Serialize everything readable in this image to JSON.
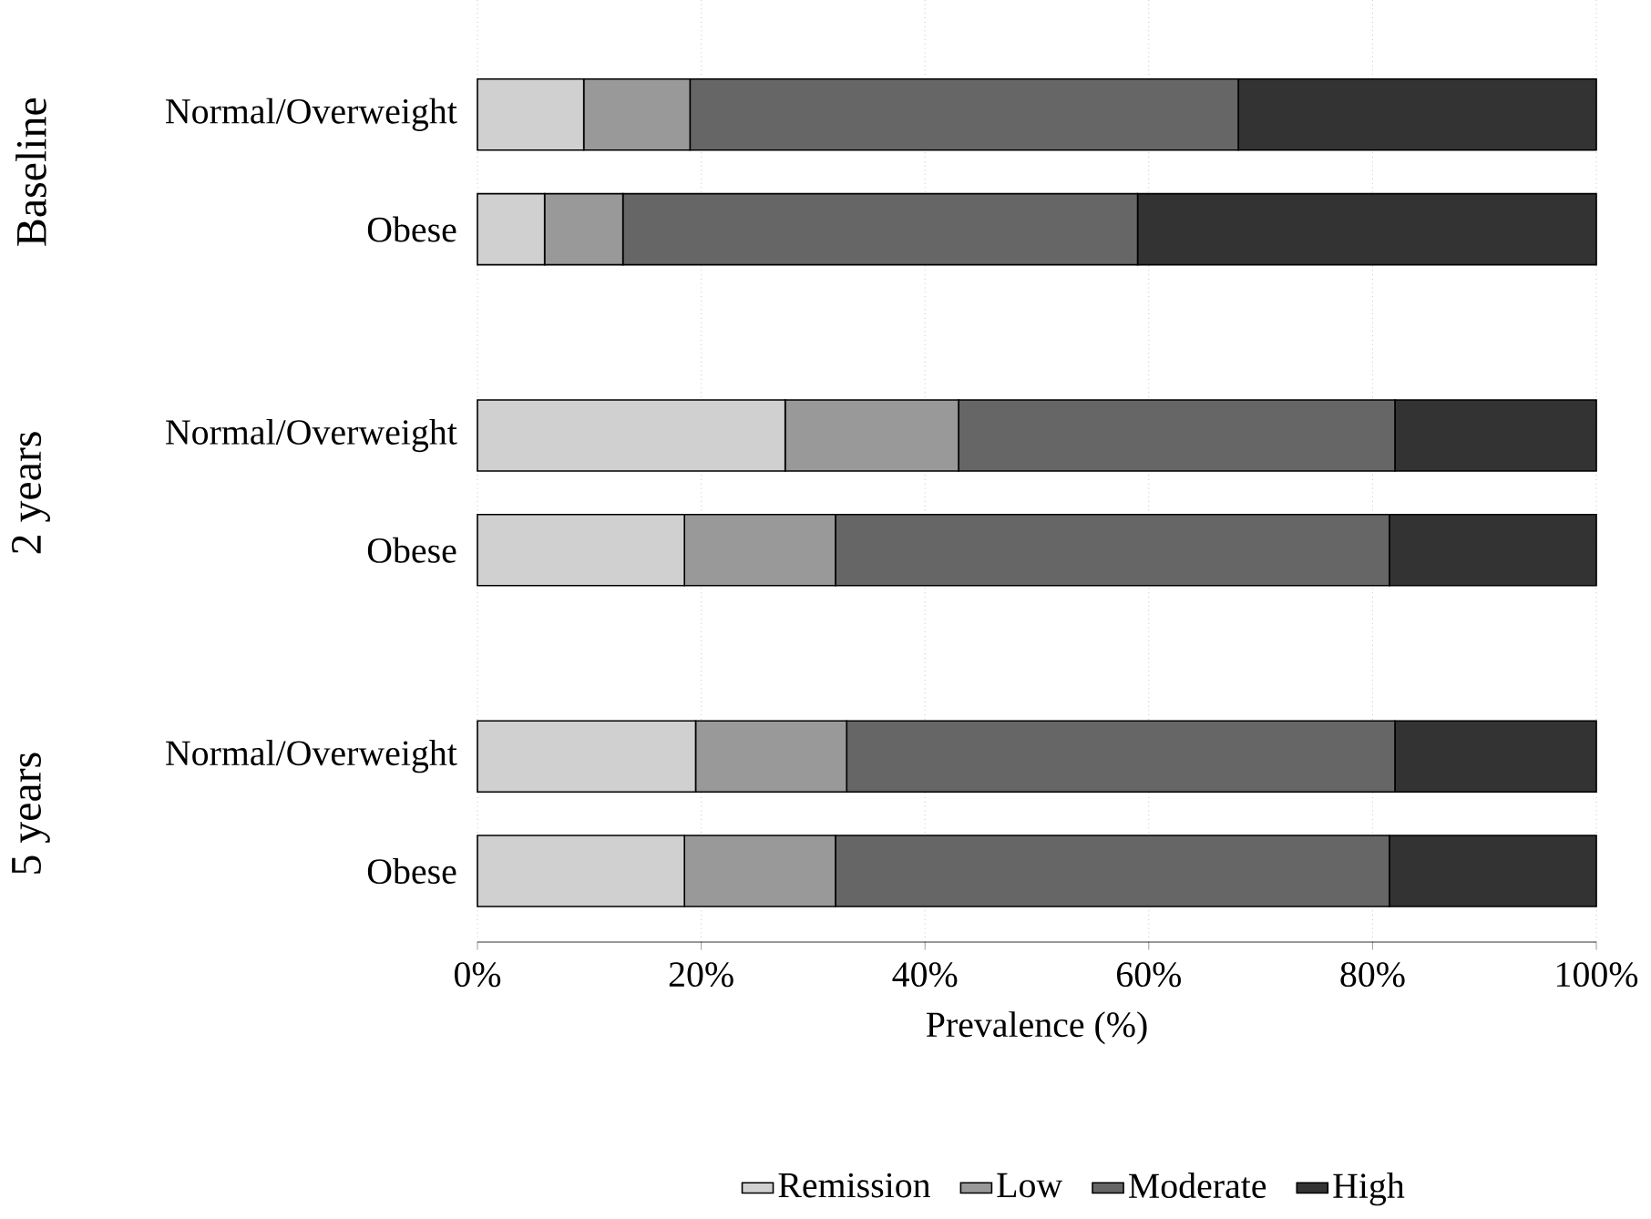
{
  "chart_data": {
    "type": "bar",
    "orientation": "horizontal",
    "stacked": true,
    "categories": [
      "Normal/Overweight",
      "Obese",
      "Normal/Overweight",
      "Obese",
      "Normal/Overweight",
      "Obese"
    ],
    "series": [
      {
        "name": "Remission",
        "color": "#d0d0d0",
        "values": [
          9.5,
          6,
          27.5,
          18.5,
          19.5,
          18.5
        ]
      },
      {
        "name": "Low",
        "color": "#999999",
        "values": [
          9.5,
          7,
          15.5,
          13.5,
          13.5,
          13.5
        ]
      },
      {
        "name": "Moderate",
        "color": "#666666",
        "values": [
          49,
          46,
          39,
          49.5,
          49,
          49.5
        ]
      },
      {
        "name": "High",
        "color": "#333333",
        "values": [
          32,
          41,
          18,
          18.5,
          18,
          18.5
        ]
      }
    ],
    "annotations": [
      "Baseline",
      "2 years",
      "5 years"
    ],
    "xlabel": "Prevalence (%)",
    "xlim": [
      0,
      100
    ],
    "xticks": [
      {
        "value": 0,
        "label": "0%"
      },
      {
        "value": 20,
        "label": "20%"
      },
      {
        "value": 40,
        "label": "40%"
      },
      {
        "value": 60,
        "label": "60%"
      },
      {
        "value": 80,
        "label": "80%"
      },
      {
        "value": 100,
        "label": "100%"
      }
    ],
    "grid": "x",
    "legend": "bottom"
  }
}
